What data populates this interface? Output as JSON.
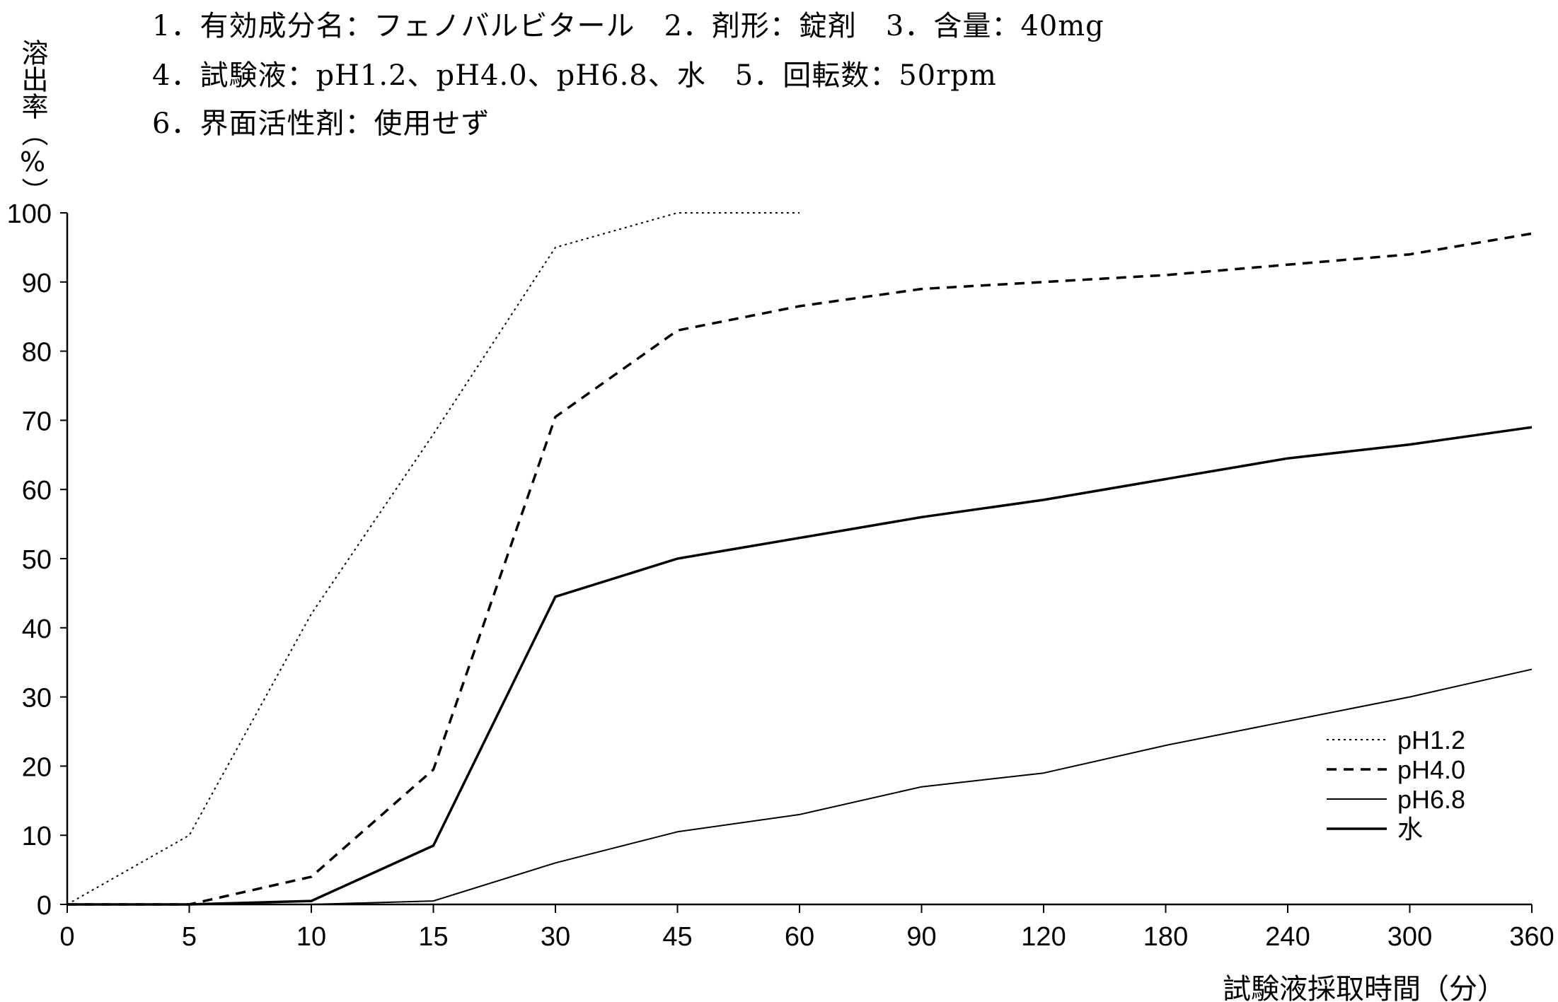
{
  "header": {
    "line1": "1．有効成分名：フェノバルビタール　2．剤形：錠剤　3．含量：40mg",
    "line2": "4．試験液：pH1.2、pH4.0、pH6.8、水　5．回転数：50rpm",
    "line3": "6．界面活性剤：使用せず"
  },
  "chart_data": {
    "type": "line",
    "title": "",
    "xlabel": "試験液採取時間（分）",
    "ylabel": "溶出率（%）",
    "categories": [
      "0",
      "5",
      "10",
      "15",
      "30",
      "45",
      "60",
      "90",
      "120",
      "180",
      "240",
      "300",
      "360"
    ],
    "ylim": [
      0,
      100
    ],
    "yticks": [
      0,
      10,
      20,
      30,
      40,
      50,
      60,
      70,
      80,
      90,
      100
    ],
    "grid": false,
    "legend_position": "bottom-right",
    "series": [
      {
        "name": "pH1.2",
        "style": "dotted",
        "values": [
          0,
          10,
          42,
          68,
          95,
          100,
          100,
          null,
          null,
          null,
          null,
          null,
          null
        ]
      },
      {
        "name": "pH4.0",
        "style": "dashed",
        "values": [
          0,
          0,
          4,
          19.5,
          70.5,
          83,
          86.5,
          89,
          90,
          91,
          92.5,
          94,
          97
        ]
      },
      {
        "name": "pH6.8",
        "style": "thin-solid",
        "values": [
          0,
          0,
          0,
          0.5,
          6,
          10.5,
          13,
          17,
          19,
          23,
          26.5,
          30,
          34
        ]
      },
      {
        "name": "水",
        "style": "bold-solid",
        "values": [
          0,
          0,
          0.5,
          8.5,
          44.5,
          50,
          53,
          56,
          58.5,
          61.5,
          64.5,
          66.5,
          69
        ]
      }
    ]
  }
}
